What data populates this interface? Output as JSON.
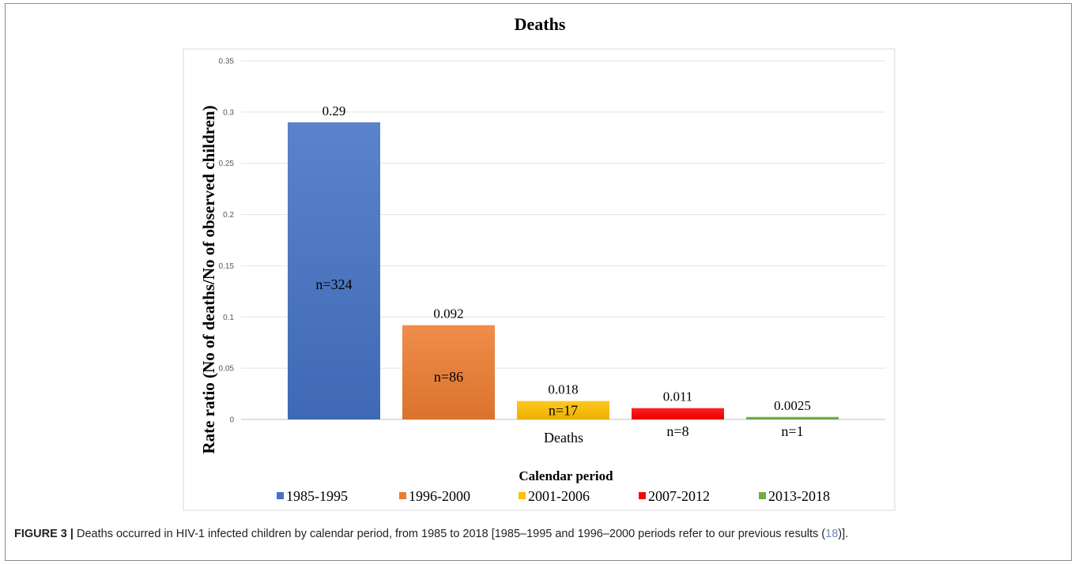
{
  "figure": {
    "label": "FIGURE 3 |",
    "caption_before": "Deaths occurred in HIV-1 infected children by calendar period, from 1985 to 2018 [1985–1995 and 1996–2000 periods refer to our previous results (",
    "caption_ref": "18",
    "caption_after": ")]."
  },
  "chart_data": {
    "type": "bar",
    "title": "Deaths",
    "ylabel": "Rate ratio (No of deaths/No of observed children)",
    "xlabel": "Calendar period",
    "category_label": "Deaths",
    "ylim": [
      0,
      0.35
    ],
    "yticks": [
      0,
      0.05,
      0.1,
      0.15,
      0.2,
      0.25,
      0.3,
      0.35
    ],
    "ytick_labels": [
      "0",
      "0.05",
      "0.1",
      "0.15",
      "0.2",
      "0.25",
      "0.3",
      "0.35"
    ],
    "grid": true,
    "legend_position": "bottom",
    "series": [
      {
        "name": "1985-1995",
        "value": 0.29,
        "value_label": "0.29",
        "n_label": "n=324",
        "color": "#4472C4",
        "n_in_bar": true
      },
      {
        "name": "1996-2000",
        "value": 0.092,
        "value_label": "0.092",
        "n_label": "n=86",
        "color": "#ED7D31",
        "n_in_bar": true
      },
      {
        "name": "2001-2006",
        "value": 0.018,
        "value_label": "0.018",
        "n_label": "n=17",
        "color": "#FFC000",
        "n_in_bar": true
      },
      {
        "name": "2007-2012",
        "value": 0.011,
        "value_label": "0.011",
        "n_label": "n=8",
        "color": "#FF0000",
        "n_in_bar": false
      },
      {
        "name": "2013-2018",
        "value": 0.0025,
        "value_label": "0.0025",
        "n_label": "n=1",
        "color": "#70AD47",
        "n_in_bar": false
      }
    ]
  }
}
